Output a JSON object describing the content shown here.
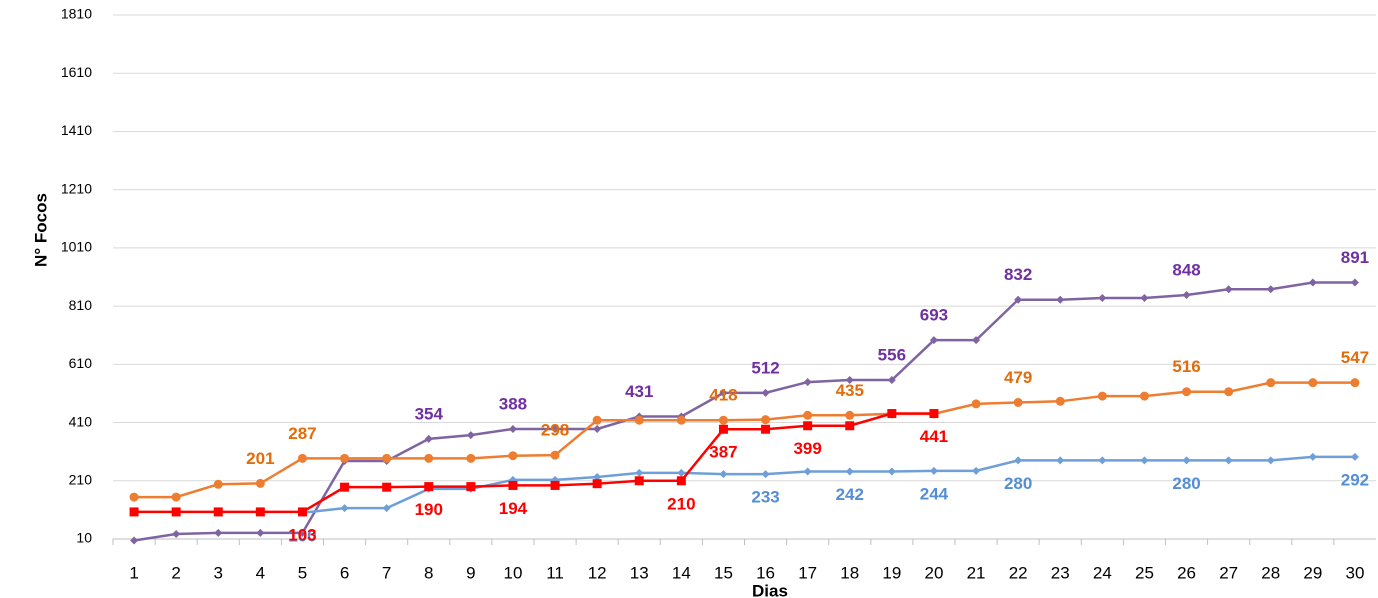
{
  "chart_data": {
    "type": "line",
    "x_label": "Dias",
    "y_label": "N° Focos",
    "categories": [
      "1",
      "2",
      "3",
      "4",
      "5",
      "6",
      "7",
      "8",
      "9",
      "10",
      "11",
      "12",
      "13",
      "14",
      "15",
      "16",
      "17",
      "18",
      "19",
      "20",
      "21",
      "22",
      "23",
      "24",
      "25",
      "26",
      "27",
      "28",
      "29",
      "30"
    ],
    "ylim": [
      10,
      1810
    ],
    "yticks": [
      10,
      210,
      410,
      610,
      810,
      1010,
      1210,
      1410,
      1610,
      1810
    ],
    "grid": true,
    "series": [
      {
        "color": "#8064a2",
        "label_color": "#7030a0",
        "marker": "diamond",
        "label_pos": "above",
        "values": [
          5,
          27,
          31,
          31,
          31,
          278,
          278,
          354,
          367,
          388,
          388,
          388,
          431,
          431,
          512,
          512,
          549,
          556,
          556,
          693,
          693,
          832,
          832,
          838,
          838,
          848,
          868,
          868,
          891,
          891
        ],
        "value_labels": [
          null,
          null,
          null,
          null,
          null,
          null,
          null,
          "354",
          null,
          "388",
          null,
          null,
          "431",
          null,
          null,
          "512",
          null,
          null,
          "556",
          "693",
          null,
          "832",
          null,
          null,
          null,
          "848",
          null,
          null,
          null,
          "891"
        ]
      },
      {
        "color": "#ed7d31",
        "label_color": "#e46c0a",
        "marker": "circle",
        "label_pos": "above",
        "values": [
          154,
          154,
          198,
          201,
          287,
          287,
          287,
          287,
          287,
          296,
          298,
          418,
          418,
          418,
          418,
          420,
          435,
          435,
          440,
          440,
          474,
          479,
          483,
          501,
          501,
          516,
          516,
          547,
          547,
          547
        ],
        "value_labels": [
          null,
          null,
          null,
          "201",
          "287",
          null,
          null,
          null,
          null,
          null,
          "298",
          null,
          null,
          null,
          "418",
          null,
          null,
          "435",
          null,
          null,
          null,
          "479",
          null,
          null,
          null,
          "516",
          null,
          null,
          null,
          "547"
        ]
      },
      {
        "color": "#6f9fd8",
        "label_color": "#558ed5",
        "marker": "diamond",
        "label_pos": "below",
        "values": [
          null,
          null,
          null,
          null,
          100,
          116,
          116,
          182,
          182,
          213,
          213,
          223,
          237,
          237,
          233,
          233,
          242,
          242,
          242,
          244,
          244,
          280,
          280,
          280,
          280,
          280,
          280,
          280,
          292,
          292
        ],
        "value_labels": [
          null,
          null,
          null,
          null,
          "100",
          null,
          null,
          null,
          null,
          null,
          null,
          null,
          null,
          null,
          null,
          "233",
          null,
          "242",
          null,
          "244",
          null,
          "280",
          null,
          null,
          null,
          "280",
          null,
          null,
          null,
          "292"
        ]
      },
      {
        "color": "#ff0000",
        "label_color": "#ff0000",
        "marker": "square",
        "label_pos": "below",
        "values": [
          103,
          103,
          103,
          103,
          103,
          188,
          188,
          190,
          190,
          194,
          194,
          200,
          210,
          210,
          387,
          387,
          399,
          399,
          441,
          441,
          null,
          null,
          null,
          null,
          null,
          null,
          null,
          null,
          null,
          null
        ],
        "value_labels": [
          null,
          null,
          null,
          null,
          "103",
          null,
          null,
          "190",
          null,
          "194",
          null,
          null,
          null,
          "210",
          "387",
          null,
          "399",
          null,
          null,
          "441",
          null,
          null,
          null,
          null,
          null,
          null,
          null,
          null,
          null,
          null
        ]
      }
    ]
  }
}
